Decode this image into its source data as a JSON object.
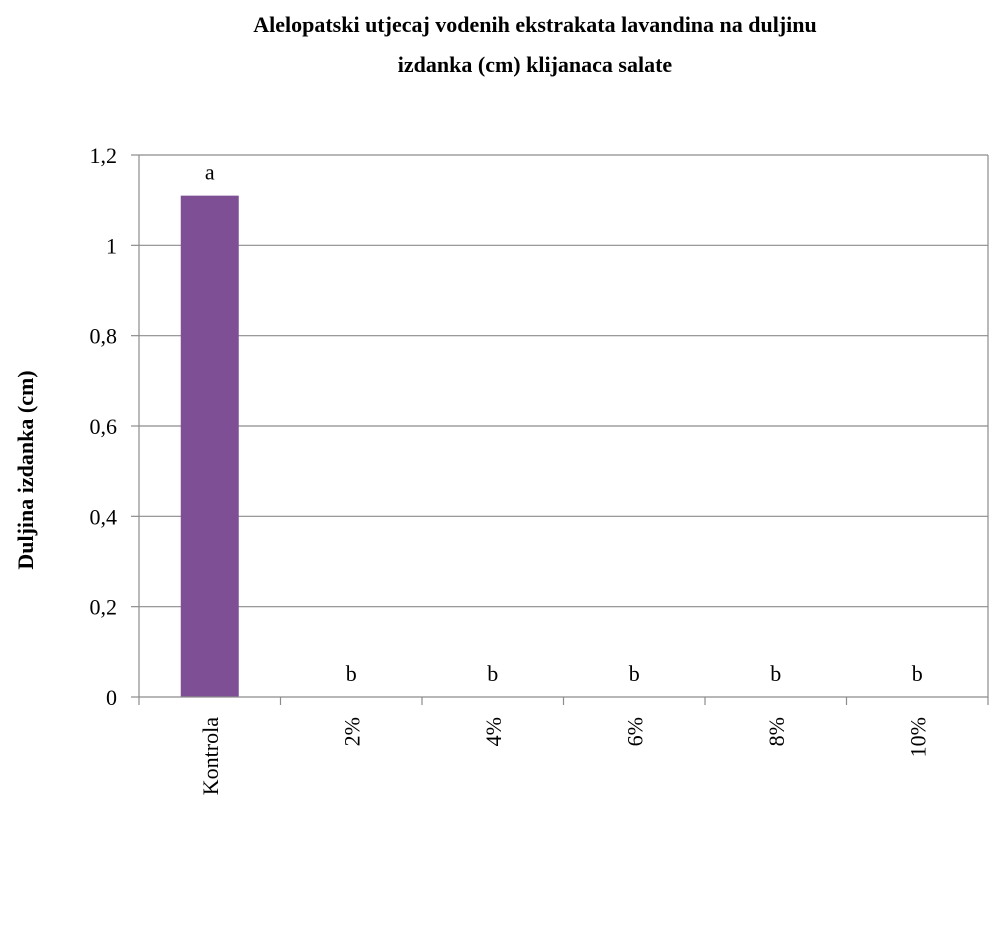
{
  "chart_data": {
    "type": "bar",
    "title": "Alelopatski utjecaj vodenih ekstrakata lavandina na duljinu izdanka (cm) klijanaca salate",
    "title_lines": [
      "Alelopatski utjecaj vodenih ekstrakata lavandina na duljinu",
      "izdanka (cm) klijanaca salate"
    ],
    "ylabel": "Duljina izdanka (cm)",
    "xlabel": "",
    "categories": [
      "Kontrola",
      "2%",
      "4%",
      "6%",
      "8%",
      "10%"
    ],
    "values": [
      1.11,
      0,
      0,
      0,
      0,
      0
    ],
    "significance_labels": [
      "a",
      "b",
      "b",
      "b",
      "b",
      "b"
    ],
    "ylim": [
      0,
      1.2
    ],
    "yticks": [
      0,
      0.2,
      0.4,
      0.6,
      0.8,
      1,
      1.2
    ],
    "ytick_labels": [
      "0",
      "0,2",
      "0,4",
      "0,6",
      "0,8",
      "1",
      "1,2"
    ],
    "bar_color": "#7f4f96",
    "grid": true,
    "legend": "none"
  }
}
